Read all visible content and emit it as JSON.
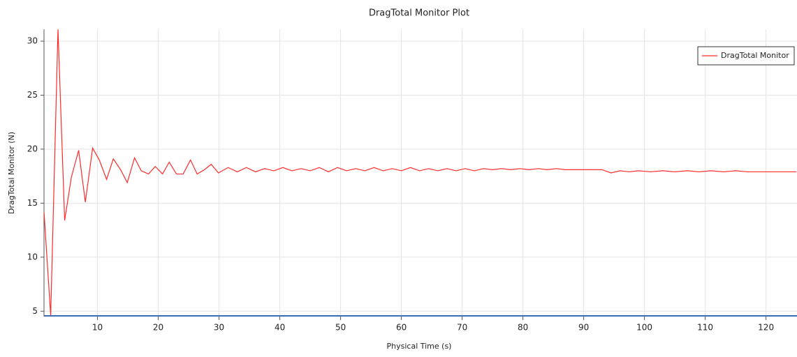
{
  "chart_data": {
    "type": "line",
    "title": "DragTotal Monitor Plot",
    "x_label": "Physical Time (s)",
    "y_label": "DragTotal Monitor (N)",
    "x": [
      1.2,
      2.3,
      3.5,
      4.6,
      5.7,
      6.9,
      8.0,
      9.2,
      10.3,
      11.5,
      12.6,
      13.8,
      14.9,
      16.1,
      17.2,
      18.4,
      19.5,
      20.7,
      21.8,
      23.0,
      24.1,
      25.3,
      26.4,
      27.6,
      28.7,
      29.9,
      31.5,
      33,
      34.5,
      36,
      37.5,
      39,
      40.5,
      42,
      43.5,
      45,
      46.5,
      48,
      49.5,
      51,
      52.5,
      54,
      55.5,
      57,
      58.5,
      60,
      61.5,
      63,
      64.5,
      66,
      67.5,
      69,
      70.5,
      72,
      73.5,
      75,
      76.5,
      78,
      79.5,
      81,
      82.5,
      84,
      85.5,
      87,
      88.5,
      90,
      91.5,
      93,
      94.5,
      96,
      97.5,
      99,
      101,
      103,
      105,
      107,
      109,
      111,
      113,
      115,
      117,
      119,
      121,
      123,
      125
    ],
    "series": [
      {
        "name": "DragTotal Monitor",
        "color": "#ff2a2a",
        "values": [
          14.2,
          4.6,
          31.1,
          13.4,
          17.4,
          19.9,
          15.1,
          20.1,
          19.0,
          17.2,
          19.1,
          18.1,
          16.9,
          19.2,
          18.0,
          17.7,
          18.4,
          17.7,
          18.8,
          17.7,
          17.7,
          19.0,
          17.7,
          18.1,
          18.6,
          17.8,
          18.3,
          17.9,
          18.3,
          17.9,
          18.2,
          18.0,
          18.3,
          18.0,
          18.2,
          18.0,
          18.3,
          17.9,
          18.3,
          18.0,
          18.2,
          18.0,
          18.3,
          18.0,
          18.2,
          18.0,
          18.3,
          18.0,
          18.2,
          18.0,
          18.2,
          18.0,
          18.2,
          18.0,
          18.2,
          18.1,
          18.2,
          18.1,
          18.2,
          18.1,
          18.2,
          18.1,
          18.2,
          18.1,
          18.1,
          18.1,
          18.1,
          18.1,
          17.8,
          18.0,
          17.9,
          18.0,
          17.9,
          18.0,
          17.9,
          18.0,
          17.9,
          18.0,
          17.9,
          18.0,
          17.9,
          17.9,
          17.9,
          17.9,
          17.9
        ]
      }
    ],
    "xlim": [
      1.2,
      125.1
    ],
    "ylim": [
      4.5,
      31.1
    ],
    "xticks": [
      10,
      20,
      30,
      40,
      50,
      60,
      70,
      80,
      90,
      100,
      110,
      120
    ],
    "yticks": [
      5,
      10,
      15,
      20,
      25,
      30
    ],
    "grid": true,
    "legend": "upper right"
  }
}
